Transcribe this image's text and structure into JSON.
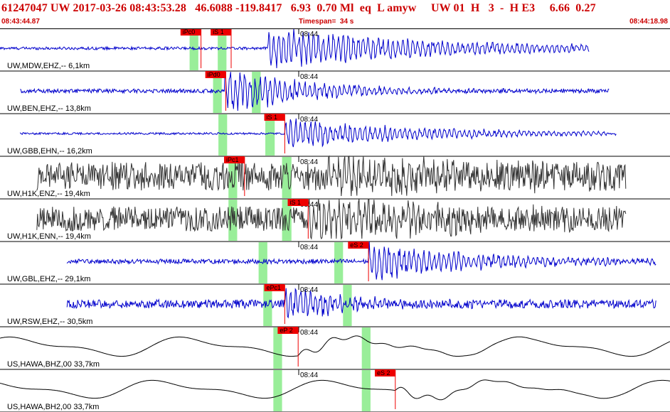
{
  "header": {
    "event_line": "61247047 UW 2017-03-26 08:43:53.28   46.6088 -119.8417   6.93  0.70 Ml  eq  L amyw     UW 01  H   3  -  H E3     6.66  0.27",
    "start_time": "08:43:44.87",
    "timespan": "Timespan=  34 s",
    "end_time": "08:44:18.98"
  },
  "chart_data": {
    "type": "line",
    "title": "",
    "time_tick_label": "08:44",
    "colors": {
      "velocity": "#0000cc",
      "accel": "#333333",
      "broadband": "#000000",
      "pick": "#ee0000",
      "window": "#99ee99",
      "divider": "#000000"
    },
    "traces": [
      {
        "label": "UW,MDW,EHZ,-- 6,1km",
        "kind": "velocity",
        "amp": 0.85,
        "noise": 0.07,
        "onset": 0.4,
        "t_start": 0.0,
        "t_end": 0.88,
        "decay": 6,
        "picks": [
          {
            "label": "iPc0",
            "t": 0.3
          },
          {
            "label": "iS 1",
            "t": 0.345
          }
        ],
        "windows": [
          [
            0.283,
            0.296
          ],
          [
            0.325,
            0.338
          ]
        ]
      },
      {
        "label": "UW,BEN,EHZ,-- 13,8km",
        "kind": "velocity",
        "amp": 0.95,
        "noise": 0.1,
        "onset": 0.335,
        "t_start": 0.03,
        "t_end": 0.91,
        "decay": 3,
        "picks": [
          {
            "label": "iPd0",
            "t": 0.337
          }
        ],
        "windows": [
          [
            0.318,
            0.331
          ],
          [
            0.376,
            0.389
          ]
        ]
      },
      {
        "label": "UW,GBB,EHN,-- 16,2km",
        "kind": "velocity",
        "amp": 0.6,
        "noise": 0.05,
        "onset": 0.425,
        "t_start": 0.03,
        "t_end": 0.92,
        "decay": 5,
        "picks": [
          {
            "label": "iS 1",
            "t": 0.425
          }
        ],
        "windows": [
          [
            0.326,
            0.339
          ],
          [
            0.396,
            0.41
          ]
        ]
      },
      {
        "label": "UW,H1K,ENZ,-- 19,4km",
        "kind": "accel",
        "amp": 0.75,
        "noise": 0.72,
        "onset": 0.49,
        "t_start": 0.055,
        "t_end": 0.935,
        "decay": 4,
        "picks": [
          {
            "label": "iPc1",
            "t": 0.365
          }
        ],
        "windows": [
          [
            0.341,
            0.354
          ],
          [
            0.421,
            0.435
          ]
        ]
      },
      {
        "label": "UW,H1K,ENN,-- 19,4km",
        "kind": "accel",
        "amp": 0.9,
        "noise": 0.62,
        "onset": 0.46,
        "t_start": 0.055,
        "t_end": 0.935,
        "decay": 4,
        "picks": [
          {
            "label": "iS 1",
            "t": 0.46
          }
        ],
        "windows": [
          [
            0.341,
            0.354
          ],
          [
            0.421,
            0.435
          ]
        ]
      },
      {
        "label": "UW,GBL,EHZ,-- 29,1km",
        "kind": "velocity",
        "amp": 0.75,
        "noise": 0.12,
        "onset": 0.55,
        "t_start": 0.1,
        "t_end": 0.98,
        "decay": 4,
        "picks": [
          {
            "label": "eS 2",
            "t": 0.55
          }
        ],
        "windows": [
          [
            0.386,
            0.399
          ],
          [
            0.499,
            0.512
          ]
        ]
      },
      {
        "label": "UW,RSW,EHZ,-- 30,5km",
        "kind": "velocity",
        "amp": 0.8,
        "noise": 0.22,
        "onset": 0.425,
        "t_start": 0.1,
        "t_end": 0.98,
        "decay": 2,
        "picks": [
          {
            "label": "ePc1",
            "t": 0.425
          }
        ],
        "windows": [
          [
            0.393,
            0.406
          ],
          [
            0.512,
            0.525
          ]
        ]
      },
      {
        "label": "US,HAWA,BHZ,00 33,7km",
        "kind": "broadband",
        "amp": 0.7,
        "noise": 0.0,
        "onset": 0.445,
        "t_start": 0.0,
        "t_end": 1.0,
        "decay": 0,
        "picks": [
          {
            "label": "eP 2",
            "t": 0.445
          }
        ],
        "windows": [
          [
            0.408,
            0.421
          ],
          [
            0.54,
            0.553
          ]
        ]
      },
      {
        "label": "US,HAWA,BH2,00 33,7km",
        "kind": "broadband",
        "amp": 0.65,
        "noise": 0.0,
        "onset": 0.59,
        "t_start": 0.0,
        "t_end": 1.0,
        "decay": 0,
        "picks": [
          {
            "label": "eS 2",
            "t": 0.59
          }
        ],
        "windows": [
          [
            0.408,
            0.421
          ],
          [
            0.54,
            0.553
          ]
        ]
      }
    ]
  }
}
